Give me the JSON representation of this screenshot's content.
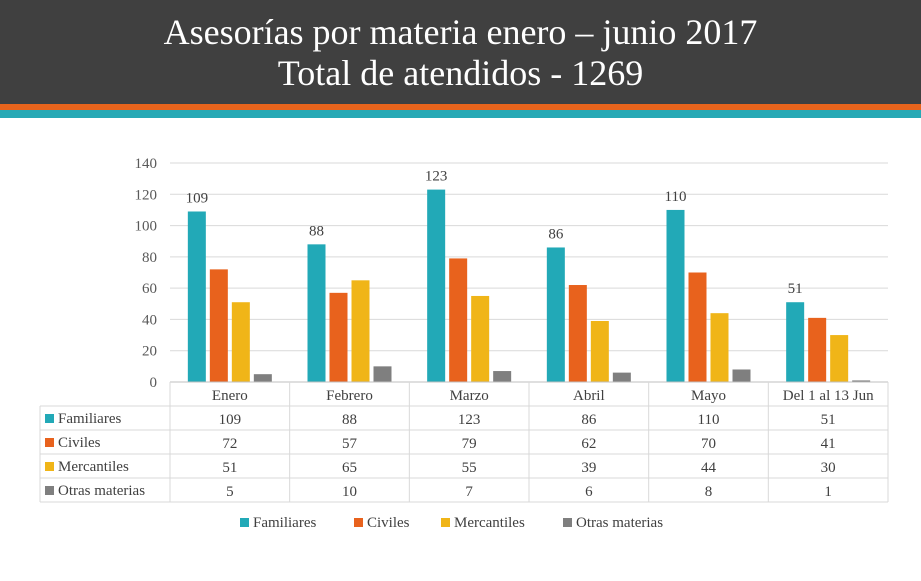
{
  "header": {
    "title_line1": "Asesorías por materia enero – junio 2017",
    "title_line2": "Total de atendidos - 1269"
  },
  "colors": {
    "banner": "#404040",
    "stripe_orange": "#e8641c",
    "stripe_teal": "#27a9b5",
    "Familiares": "#22a9b7",
    "Civiles": "#e8621d",
    "Mercantiles": "#f0b518",
    "Otras materias": "#7f7f7f"
  },
  "chart_data": {
    "type": "bar",
    "categories": [
      "Enero",
      "Febrero",
      "Marzo",
      "Abril",
      "Mayo",
      "Del 1 al 13 Jun"
    ],
    "series": [
      {
        "name": "Familiares",
        "values": [
          109,
          88,
          123,
          86,
          110,
          51
        ]
      },
      {
        "name": "Civiles",
        "values": [
          72,
          57,
          79,
          62,
          70,
          41
        ]
      },
      {
        "name": "Mercantiles",
        "values": [
          51,
          65,
          55,
          39,
          44,
          30
        ]
      },
      {
        "name": "Otras materias",
        "values": [
          5,
          10,
          7,
          6,
          8,
          1
        ]
      }
    ],
    "data_labels_series": "Familiares",
    "yticks": [
      0,
      20,
      40,
      60,
      80,
      100,
      120,
      140
    ],
    "ylim": [
      0,
      140
    ],
    "grid": true,
    "legend": "bottom",
    "data_table": true
  }
}
